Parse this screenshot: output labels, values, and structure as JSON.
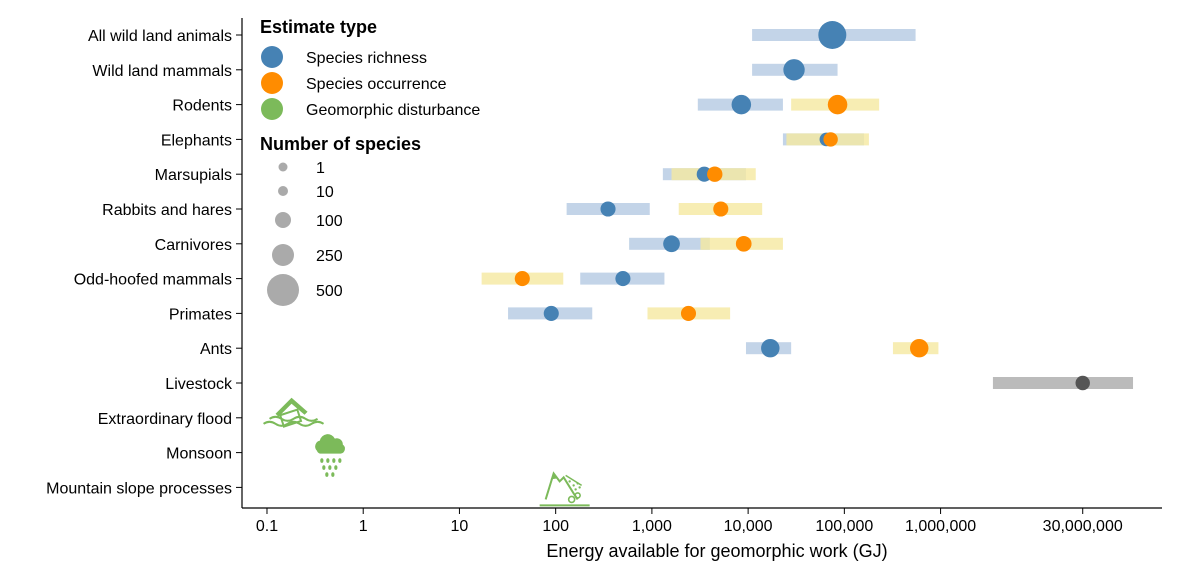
{
  "chart_data": {
    "type": "scatter",
    "xlabel": "Energy available for geomorphic work (GJ)",
    "xscale": "log",
    "xlim": [
      0.055,
      200000000
    ],
    "x_ticks": [
      0.1,
      1,
      10,
      100,
      1000,
      10000,
      100000,
      1000000,
      30000000
    ],
    "x_tick_labels": [
      "0.1",
      "1",
      "10",
      "100",
      "1,000",
      "10,000",
      "100,000",
      "1,000,000",
      "30,000,000"
    ],
    "categories": [
      "All wild land animals",
      "Wild land mammals",
      "Rodents",
      "Elephants",
      "Marsupials",
      "Rabbits and hares",
      "Carnivores",
      "Odd-hoofed mammals",
      "Primates",
      "Ants",
      "Livestock",
      "Extraordinary flood",
      "Monsoon",
      "Mountain slope processes"
    ],
    "legend": {
      "estimate_title": "Estimate type",
      "estimate_types": [
        {
          "label": "Species richness",
          "color": "#4682b4"
        },
        {
          "label": "Species occurrence",
          "color": "#ff8c00"
        },
        {
          "label": "Geomorphic disturbance",
          "color": "#7cba5a"
        }
      ],
      "size_title": "Number of species",
      "sizes": [
        {
          "label": "1",
          "n": 1
        },
        {
          "label": "10",
          "n": 10
        },
        {
          "label": "100",
          "n": 100
        },
        {
          "label": "250",
          "n": 250
        },
        {
          "label": "500",
          "n": 500
        }
      ]
    },
    "colors": {
      "richness_point": "#4682b4",
      "richness_range": "#b8cce4",
      "occurrence_point": "#ff8c00",
      "occurrence_range": "#f5e8a0",
      "livestock_point": "#555555",
      "livestock_range": "#bbbbbb",
      "disturbance_icon": "#7cba5a",
      "legend_size": "#aaaaaa"
    },
    "series": [
      {
        "name": "Species richness",
        "points": [
          {
            "category": "All wild land animals",
            "x": 75000,
            "low": 11000,
            "high": 550000,
            "n": 500
          },
          {
            "category": "Wild land mammals",
            "x": 30000,
            "low": 11000,
            "high": 85000,
            "n": 200
          },
          {
            "category": "Rodents",
            "x": 8500,
            "low": 3000,
            "high": 23000,
            "n": 140
          },
          {
            "category": "Elephants",
            "x": 65000,
            "low": 23000,
            "high": 160000,
            "n": 20
          },
          {
            "category": "Marsupials",
            "x": 3500,
            "low": 1300,
            "high": 9500,
            "n": 40
          },
          {
            "category": "Rabbits and hares",
            "x": 350,
            "low": 130,
            "high": 950,
            "n": 40
          },
          {
            "category": "Carnivores",
            "x": 1600,
            "low": 580,
            "high": 4000,
            "n": 70
          },
          {
            "category": "Odd-hoofed mammals",
            "x": 500,
            "low": 180,
            "high": 1350,
            "n": 40
          },
          {
            "category": "Primates",
            "x": 90,
            "low": 32,
            "high": 240,
            "n": 40
          },
          {
            "category": "Ants",
            "x": 17000,
            "low": 9500,
            "high": 28000,
            "n": 110
          }
        ]
      },
      {
        "name": "Species occurrence",
        "points": [
          {
            "category": "Rodents",
            "x": 85000,
            "low": 28000,
            "high": 230000,
            "n": 140
          },
          {
            "category": "Elephants",
            "x": 72000,
            "low": 25000,
            "high": 180000,
            "n": 30
          },
          {
            "category": "Marsupials",
            "x": 4500,
            "low": 1600,
            "high": 12000,
            "n": 45
          },
          {
            "category": "Rabbits and hares",
            "x": 5200,
            "low": 1900,
            "high": 14000,
            "n": 40
          },
          {
            "category": "Carnivores",
            "x": 9000,
            "low": 3200,
            "high": 23000,
            "n": 50
          },
          {
            "category": "Odd-hoofed mammals",
            "x": 45,
            "low": 17,
            "high": 120,
            "n": 40
          },
          {
            "category": "Primates",
            "x": 2400,
            "low": 900,
            "high": 6500,
            "n": 40
          },
          {
            "category": "Ants",
            "x": 600000,
            "low": 320000,
            "high": 950000,
            "n": 110
          }
        ]
      },
      {
        "points": [
          {
            "category": "Livestock",
            "x": 30000000,
            "low": 3500000,
            "high": 100000000,
            "n": 30
          }
        ]
      }
    ],
    "geomorphic_disturbance_icons": [
      {
        "category": "Extraordinary flood",
        "x": 0.18,
        "icon": "flood-house-icon"
      },
      {
        "category": "Monsoon",
        "x": 0.45,
        "icon": "rain-cloud-icon"
      },
      {
        "category": "Mountain slope processes",
        "x": 110,
        "icon": "landslide-icon"
      }
    ]
  }
}
